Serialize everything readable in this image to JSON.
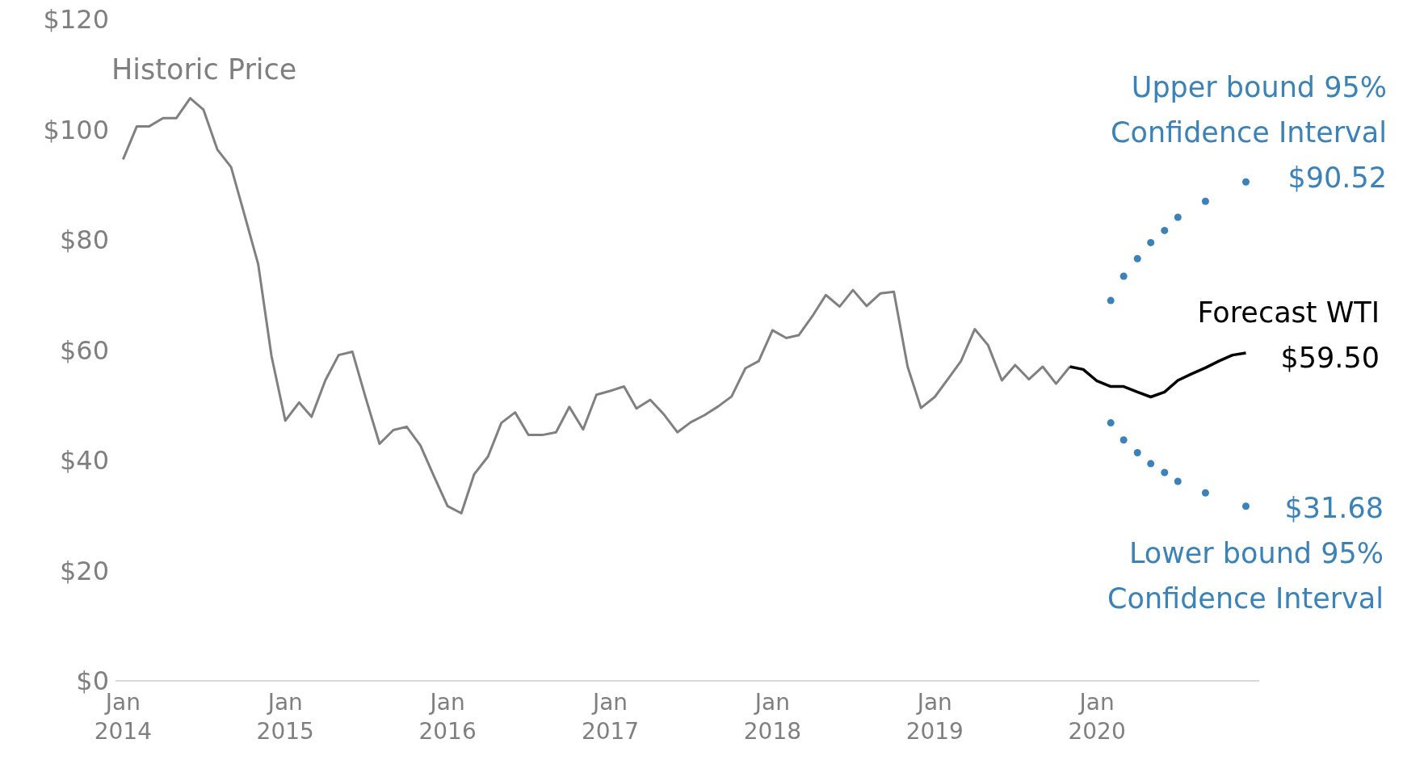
{
  "chart_data": {
    "type": "line",
    "xlim": [
      "2013-12-15",
      "2020-12-31"
    ],
    "ylim": [
      0,
      120
    ],
    "yticks": [
      {
        "value": 0,
        "label": "$0"
      },
      {
        "value": 20,
        "label": "$20"
      },
      {
        "value": 40,
        "label": "$40"
      },
      {
        "value": 60,
        "label": "$60"
      },
      {
        "value": 80,
        "label": "$80"
      },
      {
        "value": 100,
        "label": "$100"
      },
      {
        "value": 120,
        "label": "$120"
      }
    ],
    "xticks": [
      {
        "value": "2014-01",
        "label": "Jan 2014"
      },
      {
        "value": "2015-01",
        "label": "Jan 2015"
      },
      {
        "value": "2016-01",
        "label": "Jan 2016"
      },
      {
        "value": "2017-01",
        "label": "Jan 2017"
      },
      {
        "value": "2018-01",
        "label": "Jan 2018"
      },
      {
        "value": "2019-01",
        "label": "Jan 2019"
      },
      {
        "value": "2020-01",
        "label": "Jan 2020"
      }
    ],
    "series": [
      {
        "name": "Historic Price",
        "color": "#808080",
        "x": [
          "2014-01",
          "2014-02",
          "2014-03",
          "2014-04",
          "2014-05",
          "2014-06",
          "2014-07",
          "2014-08",
          "2014-09",
          "2014-10",
          "2014-11",
          "2014-12",
          "2015-01",
          "2015-02",
          "2015-03",
          "2015-04",
          "2015-05",
          "2015-06",
          "2015-07",
          "2015-08",
          "2015-09",
          "2015-10",
          "2015-11",
          "2015-12",
          "2016-01",
          "2016-02",
          "2016-03",
          "2016-04",
          "2016-05",
          "2016-06",
          "2016-07",
          "2016-08",
          "2016-09",
          "2016-10",
          "2016-11",
          "2016-12",
          "2017-01",
          "2017-02",
          "2017-03",
          "2017-04",
          "2017-05",
          "2017-06",
          "2017-07",
          "2017-08",
          "2017-09",
          "2017-10",
          "2017-11",
          "2017-12",
          "2018-01",
          "2018-02",
          "2018-03",
          "2018-04",
          "2018-05",
          "2018-06",
          "2018-07",
          "2018-08",
          "2018-09",
          "2018-10",
          "2018-11",
          "2018-12",
          "2019-01",
          "2019-02",
          "2019-03",
          "2019-04",
          "2019-05",
          "2019-06",
          "2019-07",
          "2019-08",
          "2019-09",
          "2019-10",
          "2019-11"
        ],
        "values": [
          94.6,
          100.6,
          100.6,
          102.1,
          102.1,
          105.7,
          103.6,
          96.4,
          93.2,
          84.6,
          75.6,
          58.9,
          47.2,
          50.5,
          47.9,
          54.5,
          59.1,
          59.7,
          51.3,
          43.0,
          45.5,
          46.1,
          42.7,
          37.2,
          31.7,
          30.4,
          37.5,
          40.7,
          46.8,
          48.7,
          44.6,
          44.6,
          45.1,
          49.7,
          45.6,
          51.9,
          52.6,
          53.4,
          49.4,
          51.0,
          48.4,
          45.1,
          46.9,
          48.2,
          49.8,
          51.6,
          56.7,
          58.0,
          63.6,
          62.2,
          62.7,
          66.2,
          70.0,
          67.9,
          70.9,
          68.0,
          70.3,
          70.6,
          57.0,
          49.5,
          51.5,
          54.9,
          58.0,
          63.8,
          60.9,
          54.5,
          57.3,
          54.7,
          57.0,
          53.9,
          57.0
        ]
      },
      {
        "name": "Forecast WTI",
        "color": "#000000",
        "x": [
          "2019-11",
          "2019-12",
          "2020-01",
          "2020-02",
          "2020-03",
          "2020-04",
          "2020-05",
          "2020-06",
          "2020-07",
          "2020-08",
          "2020-09",
          "2020-10",
          "2020-11",
          "2020-12"
        ],
        "values": [
          57.0,
          56.5,
          54.4,
          53.4,
          53.4,
          52.4,
          51.5,
          52.4,
          54.5,
          55.7,
          56.8,
          58.0,
          59.1,
          59.5
        ],
        "value_labels": [
          null,
          null,
          null,
          null,
          null,
          null,
          null,
          null,
          null,
          null,
          null,
          null,
          null,
          "$59.50"
        ]
      },
      {
        "name": "Upper bound 95% Confidence Interval",
        "type": "scatter",
        "color": "#3b82b8",
        "x": [
          "2020-02",
          "2020-03",
          "2020-04",
          "2020-05",
          "2020-06",
          "2020-07",
          "2020-09",
          "2020-12"
        ],
        "values": [
          69.0,
          73.4,
          76.6,
          79.5,
          81.7,
          84.1,
          87.0,
          90.52
        ],
        "value_labels": [
          null,
          null,
          null,
          null,
          null,
          null,
          null,
          "$90.52"
        ]
      },
      {
        "name": "Lower bound 95% Confidence Interval",
        "type": "scatter",
        "color": "#3b82b8",
        "x": [
          "2020-02",
          "2020-03",
          "2020-04",
          "2020-05",
          "2020-06",
          "2020-07",
          "2020-09",
          "2020-12"
        ],
        "values": [
          46.8,
          43.7,
          41.4,
          39.4,
          37.8,
          36.2,
          34.1,
          31.68
        ],
        "value_labels": [
          null,
          null,
          null,
          null,
          null,
          null,
          null,
          "$31.68"
        ]
      }
    ]
  }
}
